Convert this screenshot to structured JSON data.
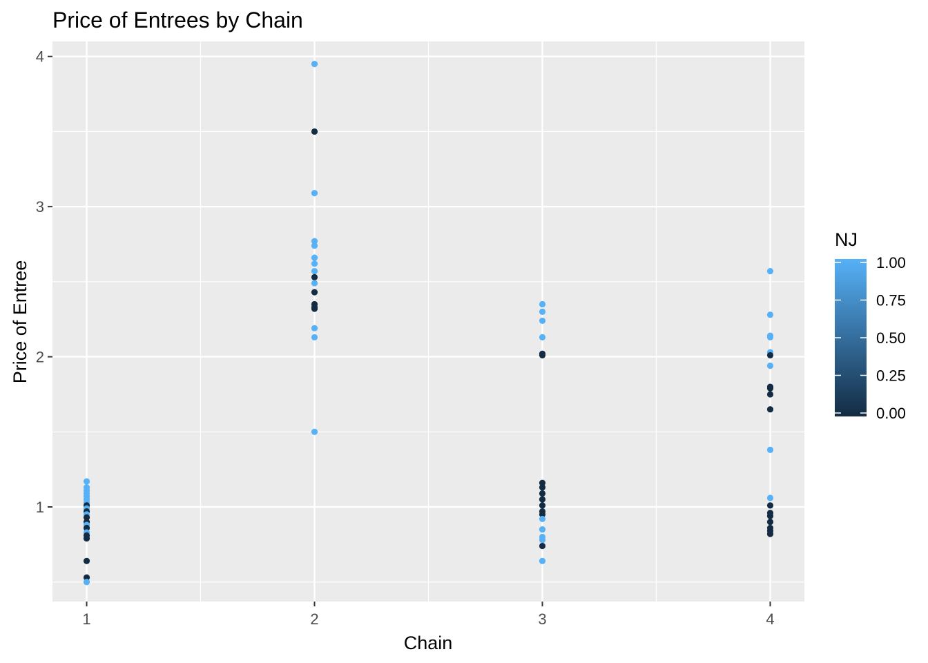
{
  "chart_data": {
    "type": "scatter",
    "title": "Price of Entrees by Chain",
    "xlabel": "Chain",
    "ylabel": "Price of Entree",
    "xlim": [
      0.85,
      4.15
    ],
    "ylim": [
      0.37,
      4.1
    ],
    "x_ticks": [
      1,
      2,
      3,
      4
    ],
    "y_ticks": [
      1,
      2,
      3,
      4
    ],
    "grid": true,
    "legend": {
      "title": "NJ",
      "type": "colorbar",
      "placement": "right",
      "ticks": [
        "0.00",
        "0.25",
        "0.50",
        "0.75",
        "1.00"
      ],
      "low_color": "#132b43",
      "high_color": "#56b1f7"
    },
    "colors": {
      "panel": "#ebebeb",
      "grid": "#ffffff",
      "low": "#132b43",
      "high": "#56b1f7"
    },
    "points": [
      {
        "x": 1,
        "y": 1.17,
        "nj": 1
      },
      {
        "x": 1,
        "y": 1.13,
        "nj": 1
      },
      {
        "x": 1,
        "y": 1.11,
        "nj": 1
      },
      {
        "x": 1,
        "y": 1.09,
        "nj": 1
      },
      {
        "x": 1,
        "y": 1.07,
        "nj": 1
      },
      {
        "x": 1,
        "y": 1.05,
        "nj": 1
      },
      {
        "x": 1,
        "y": 1.03,
        "nj": 1
      },
      {
        "x": 1,
        "y": 1.01,
        "nj": 0
      },
      {
        "x": 1,
        "y": 0.99,
        "nj": 1
      },
      {
        "x": 1,
        "y": 0.97,
        "nj": 0
      },
      {
        "x": 1,
        "y": 0.95,
        "nj": 1
      },
      {
        "x": 1,
        "y": 0.93,
        "nj": 0
      },
      {
        "x": 1,
        "y": 0.9,
        "nj": 0
      },
      {
        "x": 1,
        "y": 0.88,
        "nj": 1
      },
      {
        "x": 1,
        "y": 0.86,
        "nj": 0
      },
      {
        "x": 1,
        "y": 0.83,
        "nj": 1
      },
      {
        "x": 1,
        "y": 0.81,
        "nj": 0
      },
      {
        "x": 1,
        "y": 0.79,
        "nj": 0
      },
      {
        "x": 1,
        "y": 0.64,
        "nj": 0
      },
      {
        "x": 1,
        "y": 0.53,
        "nj": 0
      },
      {
        "x": 1,
        "y": 0.5,
        "nj": 1
      },
      {
        "x": 2,
        "y": 3.95,
        "nj": 1
      },
      {
        "x": 2,
        "y": 3.5,
        "nj": 0
      },
      {
        "x": 2,
        "y": 3.09,
        "nj": 1
      },
      {
        "x": 2,
        "y": 2.77,
        "nj": 1
      },
      {
        "x": 2,
        "y": 2.74,
        "nj": 1
      },
      {
        "x": 2,
        "y": 2.66,
        "nj": 1
      },
      {
        "x": 2,
        "y": 2.62,
        "nj": 1
      },
      {
        "x": 2,
        "y": 2.57,
        "nj": 1
      },
      {
        "x": 2,
        "y": 2.53,
        "nj": 0
      },
      {
        "x": 2,
        "y": 2.49,
        "nj": 1
      },
      {
        "x": 2,
        "y": 2.43,
        "nj": 0
      },
      {
        "x": 2,
        "y": 2.35,
        "nj": 0
      },
      {
        "x": 2,
        "y": 2.33,
        "nj": 0
      },
      {
        "x": 2,
        "y": 2.32,
        "nj": 0
      },
      {
        "x": 2,
        "y": 2.19,
        "nj": 1
      },
      {
        "x": 2,
        "y": 2.13,
        "nj": 1
      },
      {
        "x": 2,
        "y": 1.5,
        "nj": 1
      },
      {
        "x": 3,
        "y": 2.35,
        "nj": 1
      },
      {
        "x": 3,
        "y": 2.3,
        "nj": 1
      },
      {
        "x": 3,
        "y": 2.24,
        "nj": 1
      },
      {
        "x": 3,
        "y": 2.13,
        "nj": 1
      },
      {
        "x": 3,
        "y": 2.02,
        "nj": 0
      },
      {
        "x": 3,
        "y": 2.01,
        "nj": 0
      },
      {
        "x": 3,
        "y": 1.16,
        "nj": 0
      },
      {
        "x": 3,
        "y": 1.13,
        "nj": 0
      },
      {
        "x": 3,
        "y": 1.09,
        "nj": 0
      },
      {
        "x": 3,
        "y": 1.05,
        "nj": 0
      },
      {
        "x": 3,
        "y": 1.01,
        "nj": 0
      },
      {
        "x": 3,
        "y": 0.97,
        "nj": 0
      },
      {
        "x": 3,
        "y": 0.95,
        "nj": 0
      },
      {
        "x": 3,
        "y": 0.92,
        "nj": 1
      },
      {
        "x": 3,
        "y": 0.85,
        "nj": 1
      },
      {
        "x": 3,
        "y": 0.8,
        "nj": 1
      },
      {
        "x": 3,
        "y": 0.78,
        "nj": 1
      },
      {
        "x": 3,
        "y": 0.74,
        "nj": 0
      },
      {
        "x": 3,
        "y": 0.64,
        "nj": 1
      },
      {
        "x": 4,
        "y": 2.57,
        "nj": 1
      },
      {
        "x": 4,
        "y": 2.28,
        "nj": 1
      },
      {
        "x": 4,
        "y": 2.14,
        "nj": 1
      },
      {
        "x": 4,
        "y": 2.13,
        "nj": 1
      },
      {
        "x": 4,
        "y": 2.03,
        "nj": 1
      },
      {
        "x": 4,
        "y": 2.01,
        "nj": 0
      },
      {
        "x": 4,
        "y": 1.94,
        "nj": 1
      },
      {
        "x": 4,
        "y": 1.8,
        "nj": 0
      },
      {
        "x": 4,
        "y": 1.79,
        "nj": 0
      },
      {
        "x": 4,
        "y": 1.75,
        "nj": 0
      },
      {
        "x": 4,
        "y": 1.65,
        "nj": 0
      },
      {
        "x": 4,
        "y": 1.38,
        "nj": 1
      },
      {
        "x": 4,
        "y": 1.06,
        "nj": 1
      },
      {
        "x": 4,
        "y": 1.01,
        "nj": 0
      },
      {
        "x": 4,
        "y": 0.96,
        "nj": 0
      },
      {
        "x": 4,
        "y": 0.94,
        "nj": 0
      },
      {
        "x": 4,
        "y": 0.9,
        "nj": 0
      },
      {
        "x": 4,
        "y": 0.86,
        "nj": 0
      },
      {
        "x": 4,
        "y": 0.84,
        "nj": 0
      },
      {
        "x": 4,
        "y": 0.82,
        "nj": 0
      }
    ]
  }
}
